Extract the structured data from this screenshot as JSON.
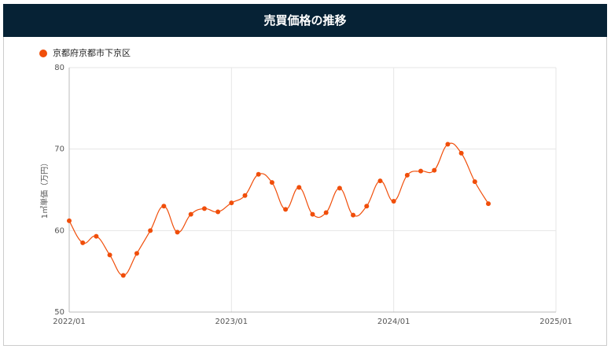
{
  "chart_data": {
    "type": "line",
    "title": "売買価格の推移",
    "y_label": "1㎡単価（万円）",
    "series": [
      {
        "name": "京都府京都市下京区",
        "color": "#f04e0a",
        "x": [
          "2022/01",
          "2022/02",
          "2022/03",
          "2022/04",
          "2022/05",
          "2022/06",
          "2022/07",
          "2022/08",
          "2022/09",
          "2022/10",
          "2022/11",
          "2022/12",
          "2023/01",
          "2023/02",
          "2023/03",
          "2023/04",
          "2023/05",
          "2023/06",
          "2023/07",
          "2023/08",
          "2023/09",
          "2023/10",
          "2023/11",
          "2023/12",
          "2024/01",
          "2024/02",
          "2024/03",
          "2024/04",
          "2024/05",
          "2024/06",
          "2024/07",
          "2024/08"
        ],
        "values": [
          61.2,
          58.5,
          59.3,
          57.0,
          54.5,
          57.2,
          60.0,
          63.0,
          59.8,
          62.0,
          62.7,
          62.3,
          63.4,
          64.3,
          66.9,
          65.9,
          62.6,
          65.3,
          62.0,
          62.2,
          65.2,
          61.9,
          63.0,
          66.1,
          63.6,
          66.8,
          67.3,
          67.4,
          70.6,
          69.5,
          66.0,
          63.3
        ]
      }
    ],
    "xlim": [
      "2022/01",
      "2025/01"
    ],
    "xticks": [
      "2022/01",
      "2023/01",
      "2024/01",
      "2025/01"
    ],
    "ylim": [
      50,
      80
    ],
    "yticks": [
      50,
      60,
      70,
      80
    ],
    "grid": true,
    "legend": "top-left"
  }
}
